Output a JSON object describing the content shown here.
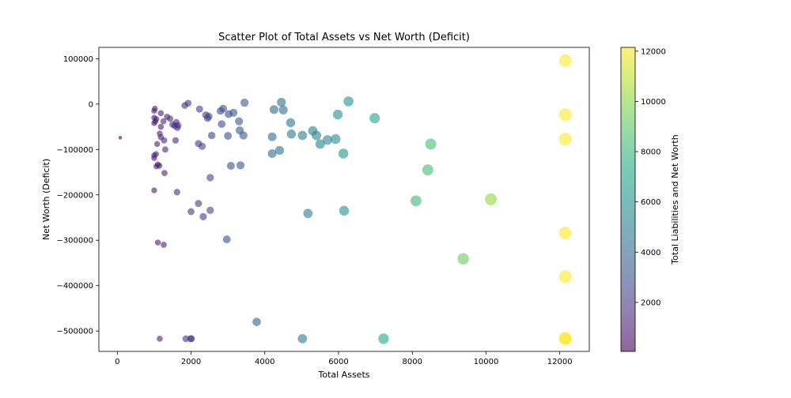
{
  "chart_data": {
    "type": "scatter",
    "title": "Scatter Plot of Total Assets vs Net Worth (Deficit)",
    "xlabel": "Total Assets",
    "ylabel": "Net Worth (Deficit)",
    "xlim": [
      -500,
      12800
    ],
    "ylim": [
      -545000,
      125000
    ],
    "x_ticks": [
      0,
      2000,
      4000,
      6000,
      8000,
      10000,
      12000
    ],
    "y_ticks": [
      100000,
      0,
      -100000,
      -200000,
      -300000,
      -400000,
      -500000
    ],
    "grid": false,
    "colorbar": {
      "label": "Total Liabilities and Net Worth",
      "range": [
        50,
        12150
      ],
      "ticks": [
        2000,
        4000,
        6000,
        8000,
        10000,
        12000
      ],
      "colormap": "viridis",
      "alpha": 0.6
    },
    "points": [
      {
        "x": 80,
        "y": -74000
      },
      {
        "x": 1000,
        "y": -15000
      },
      {
        "x": 1020,
        "y": -10000
      },
      {
        "x": 1000,
        "y": -30000
      },
      {
        "x": 1030,
        "y": -38000
      },
      {
        "x": 1060,
        "y": -33000
      },
      {
        "x": 1000,
        "y": -42000
      },
      {
        "x": 1180,
        "y": -20000
      },
      {
        "x": 1180,
        "y": -50000
      },
      {
        "x": 1250,
        "y": -38000
      },
      {
        "x": 1150,
        "y": -65000
      },
      {
        "x": 1180,
        "y": -73000
      },
      {
        "x": 1270,
        "y": -80000
      },
      {
        "x": 1080,
        "y": -88000
      },
      {
        "x": 1300,
        "y": -100000
      },
      {
        "x": 1000,
        "y": -113000
      },
      {
        "x": 1000,
        "y": -119000
      },
      {
        "x": 1050,
        "y": -110000
      },
      {
        "x": 1100,
        "y": -133000
      },
      {
        "x": 1060,
        "y": -137000
      },
      {
        "x": 1140,
        "y": -136000
      },
      {
        "x": 1280,
        "y": -152000
      },
      {
        "x": 1000,
        "y": -190000
      },
      {
        "x": 1350,
        "y": -28000
      },
      {
        "x": 1430,
        "y": -32000
      },
      {
        "x": 1500,
        "y": -45000
      },
      {
        "x": 1560,
        "y": -48000
      },
      {
        "x": 1600,
        "y": -40000
      },
      {
        "x": 1630,
        "y": -52000
      },
      {
        "x": 1650,
        "y": -47000
      },
      {
        "x": 1580,
        "y": -80000
      },
      {
        "x": 1620,
        "y": -194000
      },
      {
        "x": 1830,
        "y": -3000
      },
      {
        "x": 1920,
        "y": 2000
      },
      {
        "x": 1100,
        "y": -305000
      },
      {
        "x": 1260,
        "y": -310000
      },
      {
        "x": 1150,
        "y": -517000
      },
      {
        "x": 1860,
        "y": -517000
      },
      {
        "x": 1990,
        "y": -517000
      },
      {
        "x": 2010,
        "y": -517000
      },
      {
        "x": 2000,
        "y": -237000
      },
      {
        "x": 2200,
        "y": -219000
      },
      {
        "x": 2330,
        "y": -248000
      },
      {
        "x": 2520,
        "y": -234000
      },
      {
        "x": 2230,
        "y": -11000
      },
      {
        "x": 2400,
        "y": -24000
      },
      {
        "x": 2450,
        "y": -31000
      },
      {
        "x": 2480,
        "y": -27000
      },
      {
        "x": 2560,
        "y": -69000
      },
      {
        "x": 2200,
        "y": -87000
      },
      {
        "x": 2300,
        "y": -93000
      },
      {
        "x": 2520,
        "y": -162000
      },
      {
        "x": 2800,
        "y": -15000
      },
      {
        "x": 2870,
        "y": -10000
      },
      {
        "x": 2830,
        "y": -44000
      },
      {
        "x": 3020,
        "y": -22000
      },
      {
        "x": 3150,
        "y": -19000
      },
      {
        "x": 3000,
        "y": -70000
      },
      {
        "x": 3300,
        "y": -38000
      },
      {
        "x": 3320,
        "y": -58000
      },
      {
        "x": 3420,
        "y": -69000
      },
      {
        "x": 3450,
        "y": 3000
      },
      {
        "x": 3080,
        "y": -136000
      },
      {
        "x": 3340,
        "y": -135000
      },
      {
        "x": 2970,
        "y": -298000
      },
      {
        "x": 3780,
        "y": -480000
      },
      {
        "x": 4200,
        "y": -72000
      },
      {
        "x": 4200,
        "y": -109000
      },
      {
        "x": 4250,
        "y": -12000
      },
      {
        "x": 4400,
        "y": -102000
      },
      {
        "x": 4450,
        "y": 4000
      },
      {
        "x": 4500,
        "y": -13000
      },
      {
        "x": 4700,
        "y": -41000
      },
      {
        "x": 4720,
        "y": -66000
      },
      {
        "x": 5020,
        "y": -69000
      },
      {
        "x": 5170,
        "y": -241000
      },
      {
        "x": 5020,
        "y": -517000
      },
      {
        "x": 5300,
        "y": -59000
      },
      {
        "x": 5400,
        "y": -69000
      },
      {
        "x": 5500,
        "y": -88000
      },
      {
        "x": 5700,
        "y": -79000
      },
      {
        "x": 5920,
        "y": -77000
      },
      {
        "x": 5980,
        "y": -23000
      },
      {
        "x": 6130,
        "y": -109000
      },
      {
        "x": 6270,
        "y": 6000
      },
      {
        "x": 6150,
        "y": -235000
      },
      {
        "x": 6980,
        "y": -31000
      },
      {
        "x": 7220,
        "y": -517000
      },
      {
        "x": 8100,
        "y": -213000
      },
      {
        "x": 8420,
        "y": -145000
      },
      {
        "x": 8500,
        "y": -88000
      },
      {
        "x": 9380,
        "y": -341000
      },
      {
        "x": 10130,
        "y": -210000
      },
      {
        "x": 12150,
        "y": 96000
      },
      {
        "x": 12150,
        "y": -23000
      },
      {
        "x": 12150,
        "y": -77000
      },
      {
        "x": 12150,
        "y": -284000
      },
      {
        "x": 12150,
        "y": -380000
      },
      {
        "x": 12150,
        "y": -516000
      },
      {
        "x": 12150,
        "y": -517000
      }
    ]
  }
}
